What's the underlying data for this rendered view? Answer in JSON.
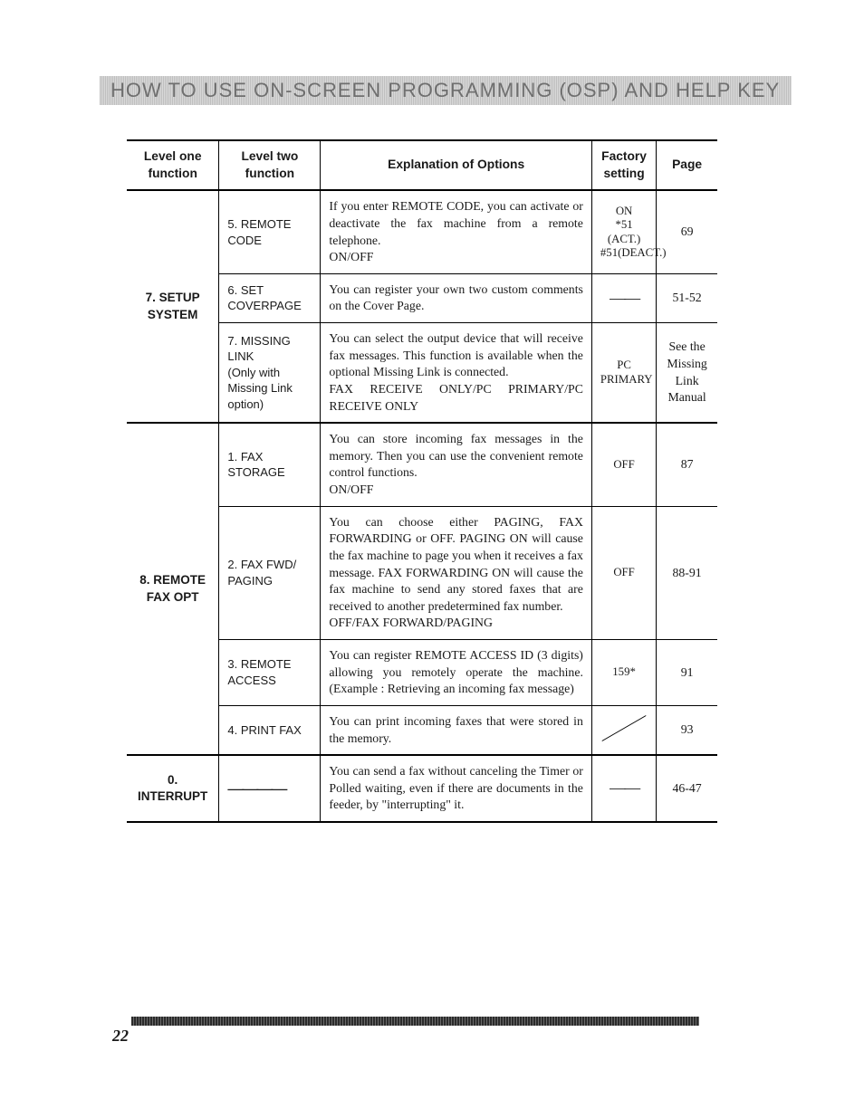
{
  "banner": "HOW TO USE ON-SCREEN PROGRAMMING (OSP) AND HELP KEY",
  "headers": {
    "l1": "Level one function",
    "l2": "Level two function",
    "exp": "Explanation of Options",
    "fs": "Factory setting",
    "pg": "Page"
  },
  "groups": [
    {
      "l1": "7. SETUP SYSTEM",
      "rows": [
        {
          "l2": "5. REMOTE CODE",
          "exp": "If you enter REMOTE CODE, you can activate or deactivate the fax machine from a remote telephone.\nON/OFF",
          "fs": "ON\n*51 (ACT.)\n#51(DEACT.)",
          "pg": "69"
        },
        {
          "l2": "6. SET COVERPAGE",
          "exp": "You can register your own two custom comments on the Cover Page.",
          "fs": "——",
          "pg": "51-52"
        },
        {
          "l2": "7. MISSING LINK\n(Only with Missing Link option)",
          "exp": "You can select the output device that will receive fax messages. This function is available when the optional Missing Link is connected.\nFAX RECEIVE ONLY/PC PRIMARY/PC RECEIVE ONLY",
          "fs": "PC PRIMARY",
          "pg": "See the Missing Link Manual"
        }
      ]
    },
    {
      "l1": "8. REMOTE FAX OPT",
      "rows": [
        {
          "l2": "1. FAX STORAGE",
          "exp": "You can store incoming fax messages in the memory. Then you can use the convenient remote control functions.\nON/OFF",
          "fs": "OFF",
          "pg": "87"
        },
        {
          "l2": "2. FAX FWD/ PAGING",
          "exp": "You can choose either PAGING, FAX FORWARDING or OFF. PAGING ON will cause the fax machine to page you when it receives a fax message. FAX FORWARDING ON will cause the fax machine to send any stored faxes that are received to another predetermined fax number.\nOFF/FAX FORWARD/PAGING",
          "fs": "OFF",
          "pg": "88-91"
        },
        {
          "l2": "3. REMOTE ACCESS",
          "exp": "You can register REMOTE ACCESS ID (3 digits) allowing you remotely operate the machine. (Example : Retrieving an incoming fax message)",
          "fs": "159*",
          "pg": "91"
        },
        {
          "l2": "4. PRINT FAX",
          "exp": "You can print incoming faxes that were stored in the memory.",
          "fs": "__DIAG__",
          "pg": "93"
        }
      ]
    },
    {
      "l1": "0. INTERRUPT",
      "rows": [
        {
          "l2": "————",
          "exp": "You can send a fax without canceling the Timer or Polled waiting, even if there are documents in the feeder, by \"interrupting\" it.",
          "fs": "——",
          "pg": "46-47"
        }
      ]
    }
  ],
  "pageNumber": "22"
}
